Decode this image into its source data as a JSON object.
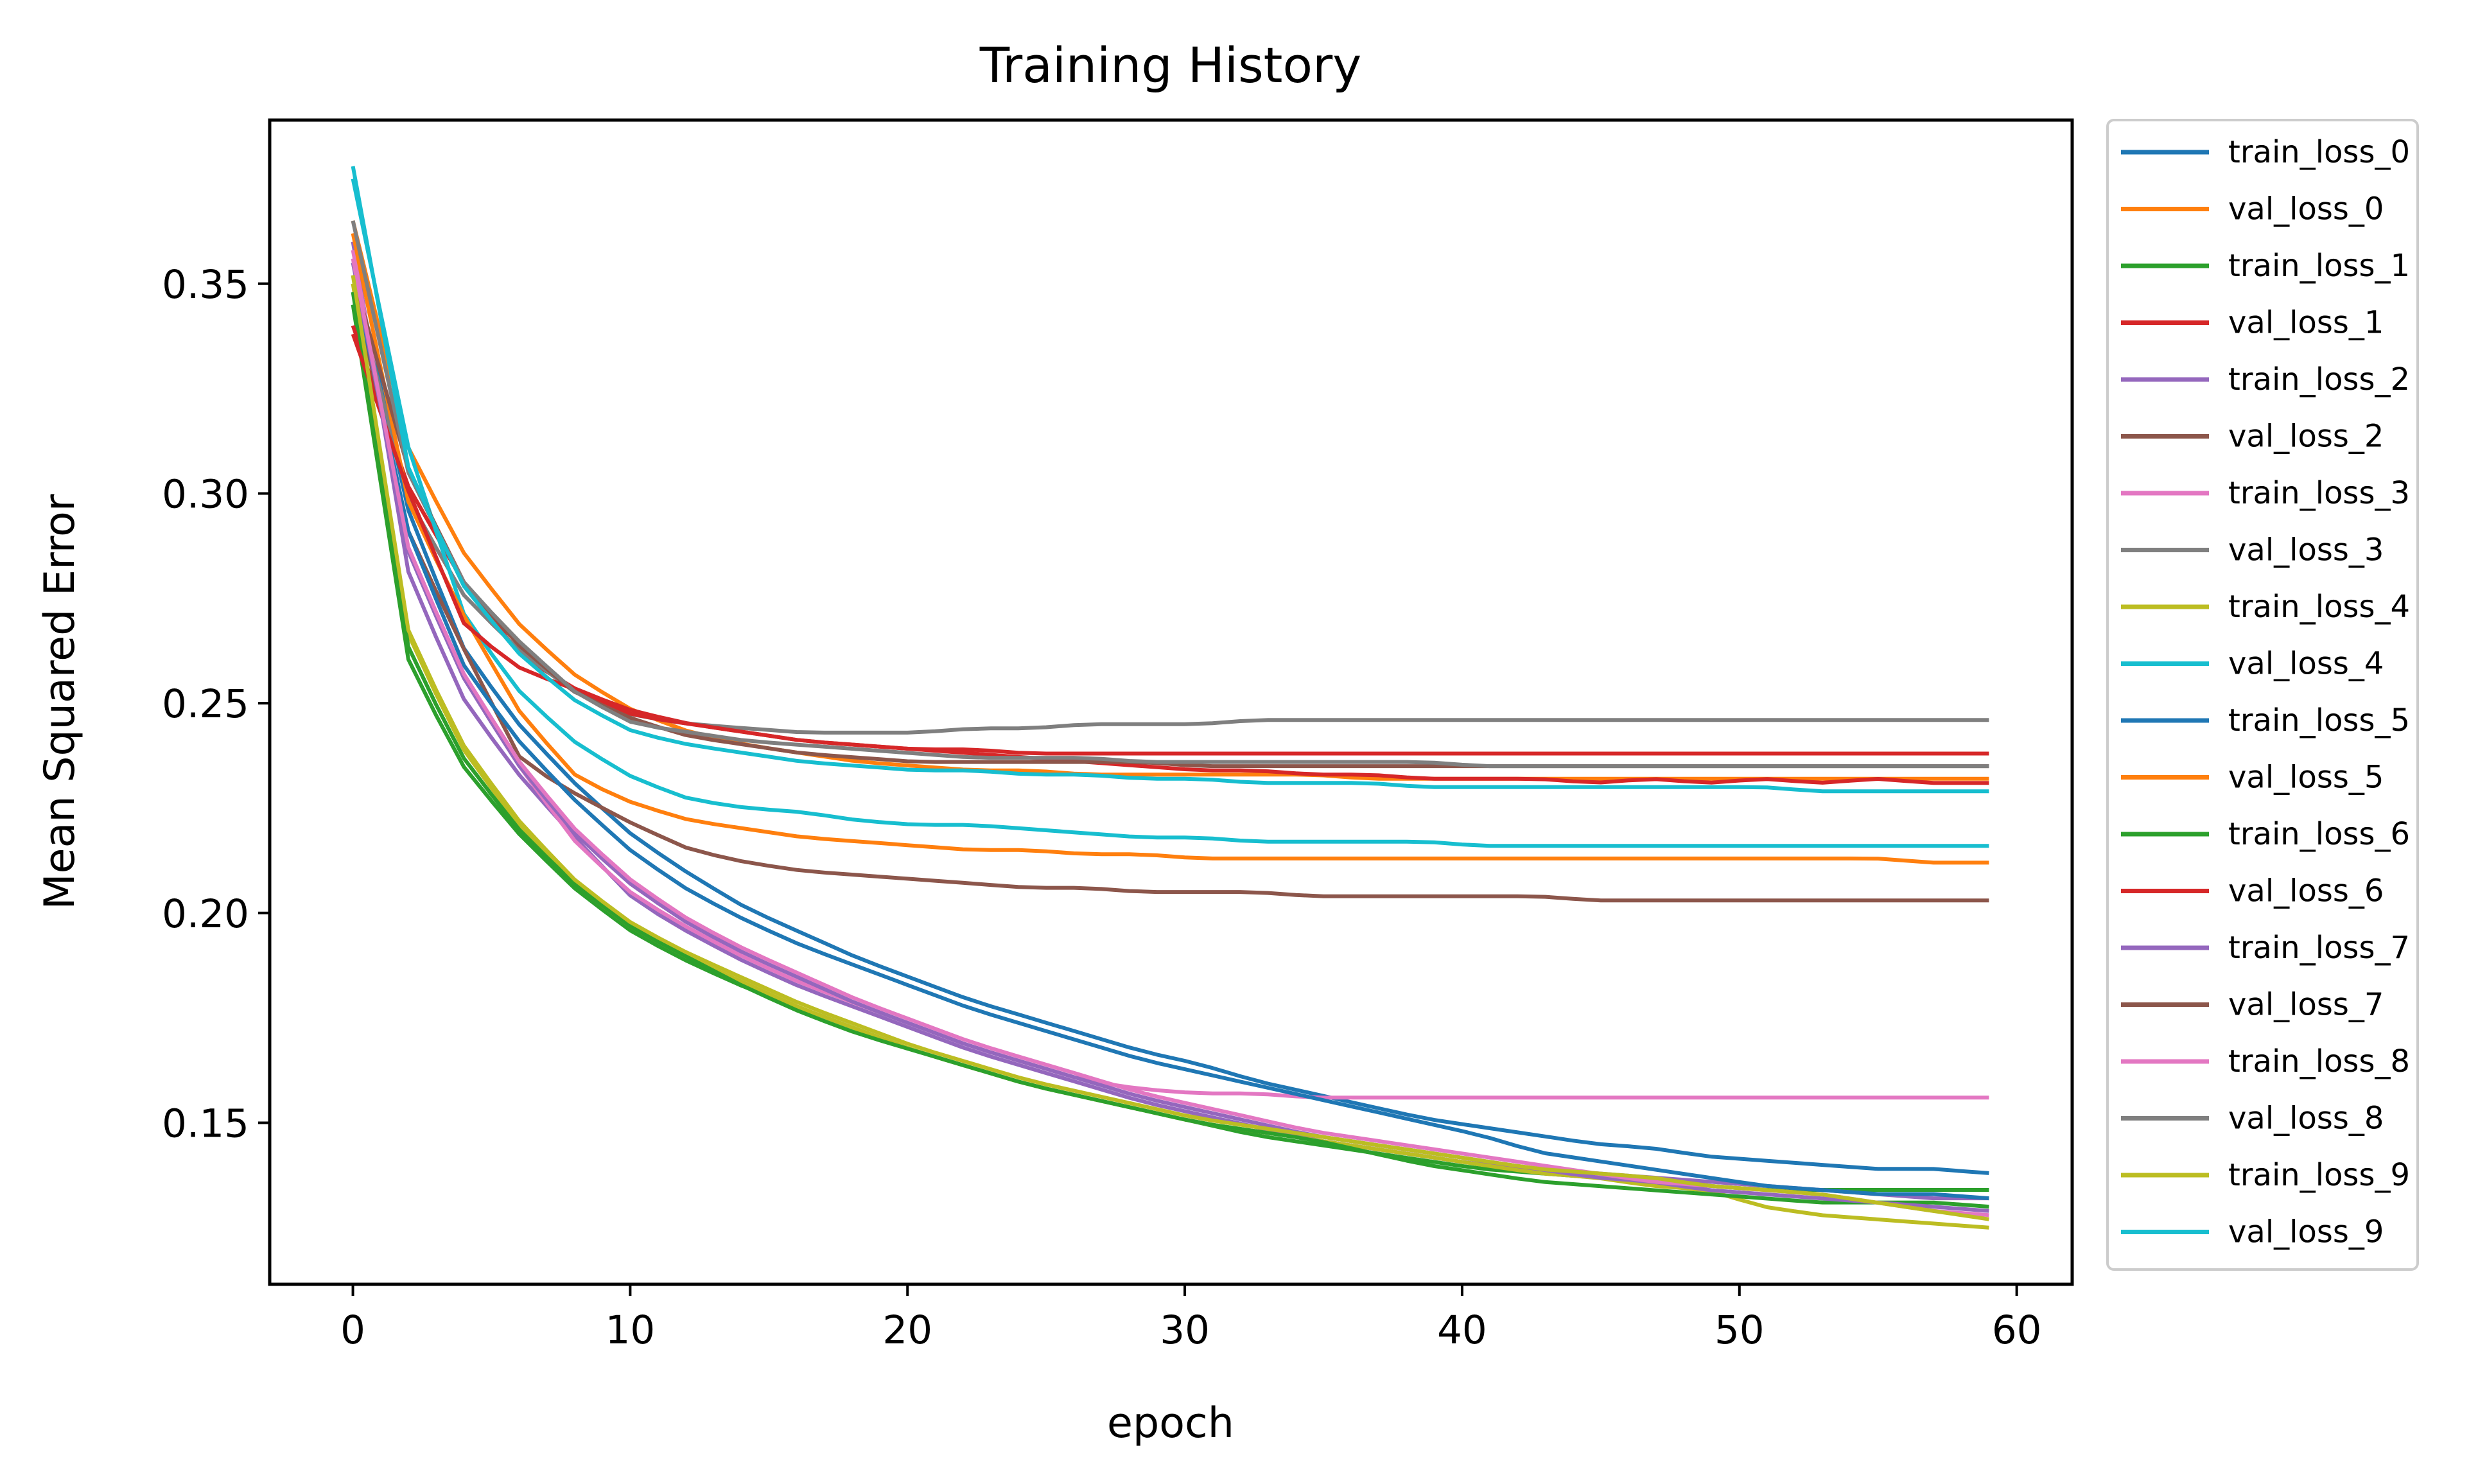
{
  "chart_data": {
    "type": "line",
    "title": "Training History",
    "xlabel": "epoch",
    "ylabel": "Mean Squared Error",
    "xlim": [
      -3,
      62
    ],
    "ylim": [
      0.1115,
      0.389
    ],
    "xticks": [
      0,
      10,
      20,
      30,
      40,
      50,
      60
    ],
    "xtick_labels": [
      "0",
      "10",
      "20",
      "30",
      "40",
      "50",
      "60"
    ],
    "yticks": [
      0.15,
      0.2,
      0.25,
      0.3,
      0.35
    ],
    "ytick_labels": [
      "0.15",
      "0.20",
      "0.25",
      "0.30",
      "0.35"
    ],
    "grid": false,
    "legend_position": "outside-right",
    "epochs": 60,
    "series": [
      {
        "name": "train_loss_0",
        "color": "#1f77b4",
        "values": [
          0.355,
          0.295,
          0.262,
          0.244,
          0.23,
          0.218,
          0.209,
          0.201,
          0.195,
          0.189,
          0.184,
          0.179,
          0.175,
          0.171,
          0.167,
          0.164,
          0.16,
          0.157,
          0.154,
          0.151,
          0.149,
          0.147,
          0.145,
          0.144,
          0.142,
          0.141,
          0.14,
          0.139,
          0.139,
          0.138
        ]
      },
      {
        "name": "val_loss_0",
        "color": "#ff7f0e",
        "values": [
          0.365,
          0.31,
          0.285,
          0.268,
          0.256,
          0.248,
          0.243,
          0.24,
          0.238,
          0.236,
          0.235,
          0.234,
          0.234,
          0.233,
          0.233,
          0.233,
          0.233,
          0.233,
          0.232,
          0.232,
          0.232,
          0.232,
          0.232,
          0.232,
          0.232,
          0.232,
          0.232,
          0.232,
          0.232,
          0.232
        ]
      },
      {
        "name": "train_loss_1",
        "color": "#2ca02c",
        "values": [
          0.345,
          0.259,
          0.234,
          0.218,
          0.205,
          0.195,
          0.188,
          0.182,
          0.177,
          0.172,
          0.167,
          0.163,
          0.159,
          0.156,
          0.153,
          0.15,
          0.147,
          0.145,
          0.143,
          0.141,
          0.139,
          0.138,
          0.137,
          0.136,
          0.135,
          0.134,
          0.134,
          0.134,
          0.134,
          0.134
        ]
      },
      {
        "name": "val_loss_1",
        "color": "#d62728",
        "values": [
          0.34,
          0.301,
          0.278,
          0.261,
          0.253,
          0.248,
          0.245,
          0.243,
          0.241,
          0.24,
          0.239,
          0.239,
          0.238,
          0.238,
          0.238,
          0.238,
          0.238,
          0.238,
          0.238,
          0.238,
          0.238,
          0.238,
          0.238,
          0.238,
          0.238,
          0.238,
          0.238,
          0.238,
          0.238,
          0.238
        ]
      },
      {
        "name": "train_loss_2",
        "color": "#9467bd",
        "values": [
          0.36,
          0.28,
          0.25,
          0.232,
          0.217,
          0.203,
          0.195,
          0.188,
          0.182,
          0.177,
          0.172,
          0.167,
          0.163,
          0.159,
          0.155,
          0.152,
          0.149,
          0.146,
          0.144,
          0.142,
          0.14,
          0.139,
          0.138,
          0.137,
          0.136,
          0.135,
          0.134,
          0.133,
          0.132,
          0.132
        ]
      },
      {
        "name": "val_loss_2",
        "color": "#8c564b",
        "values": [
          0.35,
          0.29,
          0.262,
          0.236,
          0.228,
          0.221,
          0.215,
          0.212,
          0.21,
          0.209,
          0.208,
          0.207,
          0.206,
          0.206,
          0.205,
          0.205,
          0.205,
          0.204,
          0.204,
          0.204,
          0.204,
          0.204,
          0.203,
          0.203,
          0.203,
          0.203,
          0.203,
          0.203,
          0.203,
          0.203
        ]
      },
      {
        "name": "train_loss_3",
        "color": "#e377c2",
        "values": [
          0.358,
          0.285,
          0.255,
          0.234,
          0.216,
          0.204,
          0.196,
          0.189,
          0.183,
          0.178,
          0.173,
          0.168,
          0.164,
          0.16,
          0.158,
          0.157,
          0.157,
          0.156,
          0.156,
          0.156,
          0.156,
          0.156,
          0.156,
          0.156,
          0.156,
          0.156,
          0.156,
          0.156,
          0.156,
          0.156
        ]
      },
      {
        "name": "val_loss_3",
        "color": "#7f7f7f",
        "values": [
          0.35,
          0.298,
          0.275,
          0.262,
          0.252,
          0.247,
          0.245,
          0.244,
          0.243,
          0.243,
          0.243,
          0.244,
          0.244,
          0.245,
          0.245,
          0.245,
          0.246,
          0.246,
          0.246,
          0.246,
          0.246,
          0.246,
          0.246,
          0.246,
          0.246,
          0.246,
          0.246,
          0.246,
          0.246,
          0.246
        ]
      },
      {
        "name": "train_loss_4",
        "color": "#bcbd22",
        "values": [
          0.35,
          0.265,
          0.238,
          0.22,
          0.206,
          0.196,
          0.189,
          0.183,
          0.177,
          0.172,
          0.167,
          0.163,
          0.159,
          0.156,
          0.153,
          0.15,
          0.148,
          0.146,
          0.144,
          0.142,
          0.14,
          0.138,
          0.137,
          0.135,
          0.134,
          0.13,
          0.128,
          0.127,
          0.126,
          0.125
        ]
      },
      {
        "name": "val_loss_4",
        "color": "#17becf",
        "values": [
          0.375,
          0.31,
          0.27,
          0.252,
          0.24,
          0.232,
          0.227,
          0.225,
          0.224,
          0.222,
          0.221,
          0.221,
          0.22,
          0.219,
          0.218,
          0.218,
          0.217,
          0.217,
          0.217,
          0.217,
          0.216,
          0.216,
          0.216,
          0.216,
          0.216,
          0.216,
          0.216,
          0.216,
          0.216,
          0.216
        ]
      },
      {
        "name": "train_loss_5",
        "color": "#1f77b4",
        "values": [
          0.352,
          0.29,
          0.258,
          0.24,
          0.226,
          0.214,
          0.205,
          0.198,
          0.192,
          0.187,
          0.182,
          0.177,
          0.173,
          0.169,
          0.165,
          0.162,
          0.159,
          0.156,
          0.153,
          0.15,
          0.147,
          0.143,
          0.141,
          0.139,
          0.137,
          0.135,
          0.134,
          0.133,
          0.133,
          0.132
        ]
      },
      {
        "name": "val_loss_5",
        "color": "#ff7f0e",
        "values": [
          0.362,
          0.297,
          0.27,
          0.247,
          0.232,
          0.226,
          0.222,
          0.22,
          0.218,
          0.217,
          0.216,
          0.215,
          0.215,
          0.214,
          0.214,
          0.213,
          0.213,
          0.213,
          0.213,
          0.213,
          0.213,
          0.213,
          0.213,
          0.213,
          0.213,
          0.213,
          0.213,
          0.213,
          0.212,
          0.212
        ]
      },
      {
        "name": "train_loss_6",
        "color": "#2ca02c",
        "values": [
          0.348,
          0.262,
          0.236,
          0.219,
          0.206,
          0.196,
          0.189,
          0.182,
          0.176,
          0.171,
          0.167,
          0.163,
          0.159,
          0.156,
          0.153,
          0.15,
          0.148,
          0.146,
          0.143,
          0.14,
          0.138,
          0.136,
          0.135,
          0.134,
          0.133,
          0.132,
          0.131,
          0.131,
          0.131,
          0.13
        ]
      },
      {
        "name": "val_loss_6",
        "color": "#d62728",
        "values": [
          0.338,
          0.3,
          0.268,
          0.258,
          0.253,
          0.247,
          0.245,
          0.243,
          0.241,
          0.24,
          0.239,
          0.238,
          0.237,
          0.236,
          0.235,
          0.234,
          0.234,
          0.233,
          0.233,
          0.232,
          0.232,
          0.232,
          0.231,
          0.232,
          0.231,
          0.232,
          0.231,
          0.232,
          0.231,
          0.231
        ]
      },
      {
        "name": "train_loss_7",
        "color": "#9467bd",
        "values": [
          0.355,
          0.285,
          0.255,
          0.234,
          0.218,
          0.206,
          0.197,
          0.19,
          0.184,
          0.178,
          0.173,
          0.168,
          0.164,
          0.16,
          0.156,
          0.153,
          0.15,
          0.147,
          0.145,
          0.143,
          0.141,
          0.139,
          0.137,
          0.136,
          0.134,
          0.133,
          0.132,
          0.131,
          0.13,
          0.129
        ]
      },
      {
        "name": "val_loss_7",
        "color": "#8c564b",
        "values": [
          0.352,
          0.305,
          0.278,
          0.263,
          0.252,
          0.246,
          0.242,
          0.24,
          0.238,
          0.237,
          0.236,
          0.236,
          0.236,
          0.236,
          0.236,
          0.235,
          0.235,
          0.235,
          0.235,
          0.235,
          0.235,
          0.235,
          0.235,
          0.235,
          0.235,
          0.235,
          0.235,
          0.235,
          0.235,
          0.235
        ]
      },
      {
        "name": "train_loss_8",
        "color": "#e377c2",
        "values": [
          0.356,
          0.286,
          0.256,
          0.235,
          0.219,
          0.207,
          0.198,
          0.191,
          0.185,
          0.179,
          0.174,
          0.169,
          0.165,
          0.161,
          0.157,
          0.154,
          0.151,
          0.148,
          0.146,
          0.144,
          0.142,
          0.14,
          0.138,
          0.136,
          0.135,
          0.134,
          0.133,
          0.131,
          0.129,
          0.128
        ]
      },
      {
        "name": "val_loss_8",
        "color": "#7f7f7f",
        "values": [
          0.365,
          0.304,
          0.278,
          0.264,
          0.252,
          0.245,
          0.243,
          0.241,
          0.24,
          0.239,
          0.238,
          0.237,
          0.237,
          0.237,
          0.236,
          0.236,
          0.236,
          0.236,
          0.236,
          0.236,
          0.235,
          0.235,
          0.235,
          0.235,
          0.235,
          0.235,
          0.235,
          0.235,
          0.235,
          0.235
        ]
      },
      {
        "name": "train_loss_9",
        "color": "#bcbd22",
        "values": [
          0.352,
          0.266,
          0.239,
          0.221,
          0.207,
          0.197,
          0.19,
          0.184,
          0.178,
          0.173,
          0.168,
          0.164,
          0.16,
          0.157,
          0.154,
          0.151,
          0.149,
          0.147,
          0.145,
          0.143,
          0.141,
          0.139,
          0.138,
          0.137,
          0.135,
          0.134,
          0.133,
          0.131,
          0.129,
          0.127
        ]
      },
      {
        "name": "val_loss_9",
        "color": "#17becf",
        "values": [
          0.378,
          0.305,
          0.277,
          0.261,
          0.25,
          0.243,
          0.24,
          0.238,
          0.236,
          0.235,
          0.234,
          0.234,
          0.233,
          0.233,
          0.232,
          0.232,
          0.231,
          0.231,
          0.231,
          0.23,
          0.23,
          0.23,
          0.23,
          0.23,
          0.23,
          0.23,
          0.229,
          0.229,
          0.229,
          0.229
        ]
      }
    ]
  }
}
